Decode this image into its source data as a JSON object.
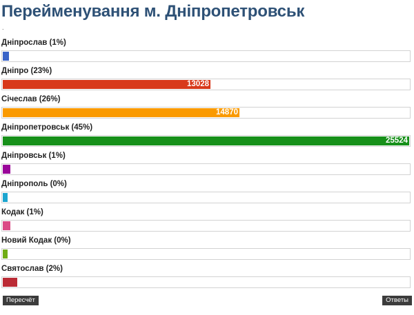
{
  "poll": {
    "title": "Перейменування м. Дніпропетровськ",
    "marker": ".",
    "max_votes": 25524,
    "options": [
      {
        "label": "Дніпрослав (1%)",
        "votes": null,
        "color": "#3a64c8",
        "fraction": 0.015
      },
      {
        "label": "Дніпро (23%)",
        "votes": 13028,
        "color": "#d8391b",
        "fraction": 0.5104
      },
      {
        "label": "Січеслав (26%)",
        "votes": 14870,
        "color": "#fa9a00",
        "fraction": 0.5826
      },
      {
        "label": "Дніпропетровськ (45%)",
        "votes": 25524,
        "color": "#17901a",
        "fraction": 1.0
      },
      {
        "label": "Дніпровськ (1%)",
        "votes": null,
        "color": "#9a069a",
        "fraction": 0.018
      },
      {
        "label": "Дніпрополь (0%)",
        "votes": null,
        "color": "#1ca5cf",
        "fraction": 0.009
      },
      {
        "label": "Кодак (1%)",
        "votes": null,
        "color": "#db4b86",
        "fraction": 0.018
      },
      {
        "label": "Новий Кодак (0%)",
        "votes": null,
        "color": "#6fac14",
        "fraction": 0.009
      },
      {
        "label": "Святослав (2%)",
        "votes": null,
        "color": "#bb2b35",
        "fraction": 0.036
      }
    ]
  },
  "buttons": {
    "recount": "Пересчёт",
    "answers": "Ответы"
  }
}
